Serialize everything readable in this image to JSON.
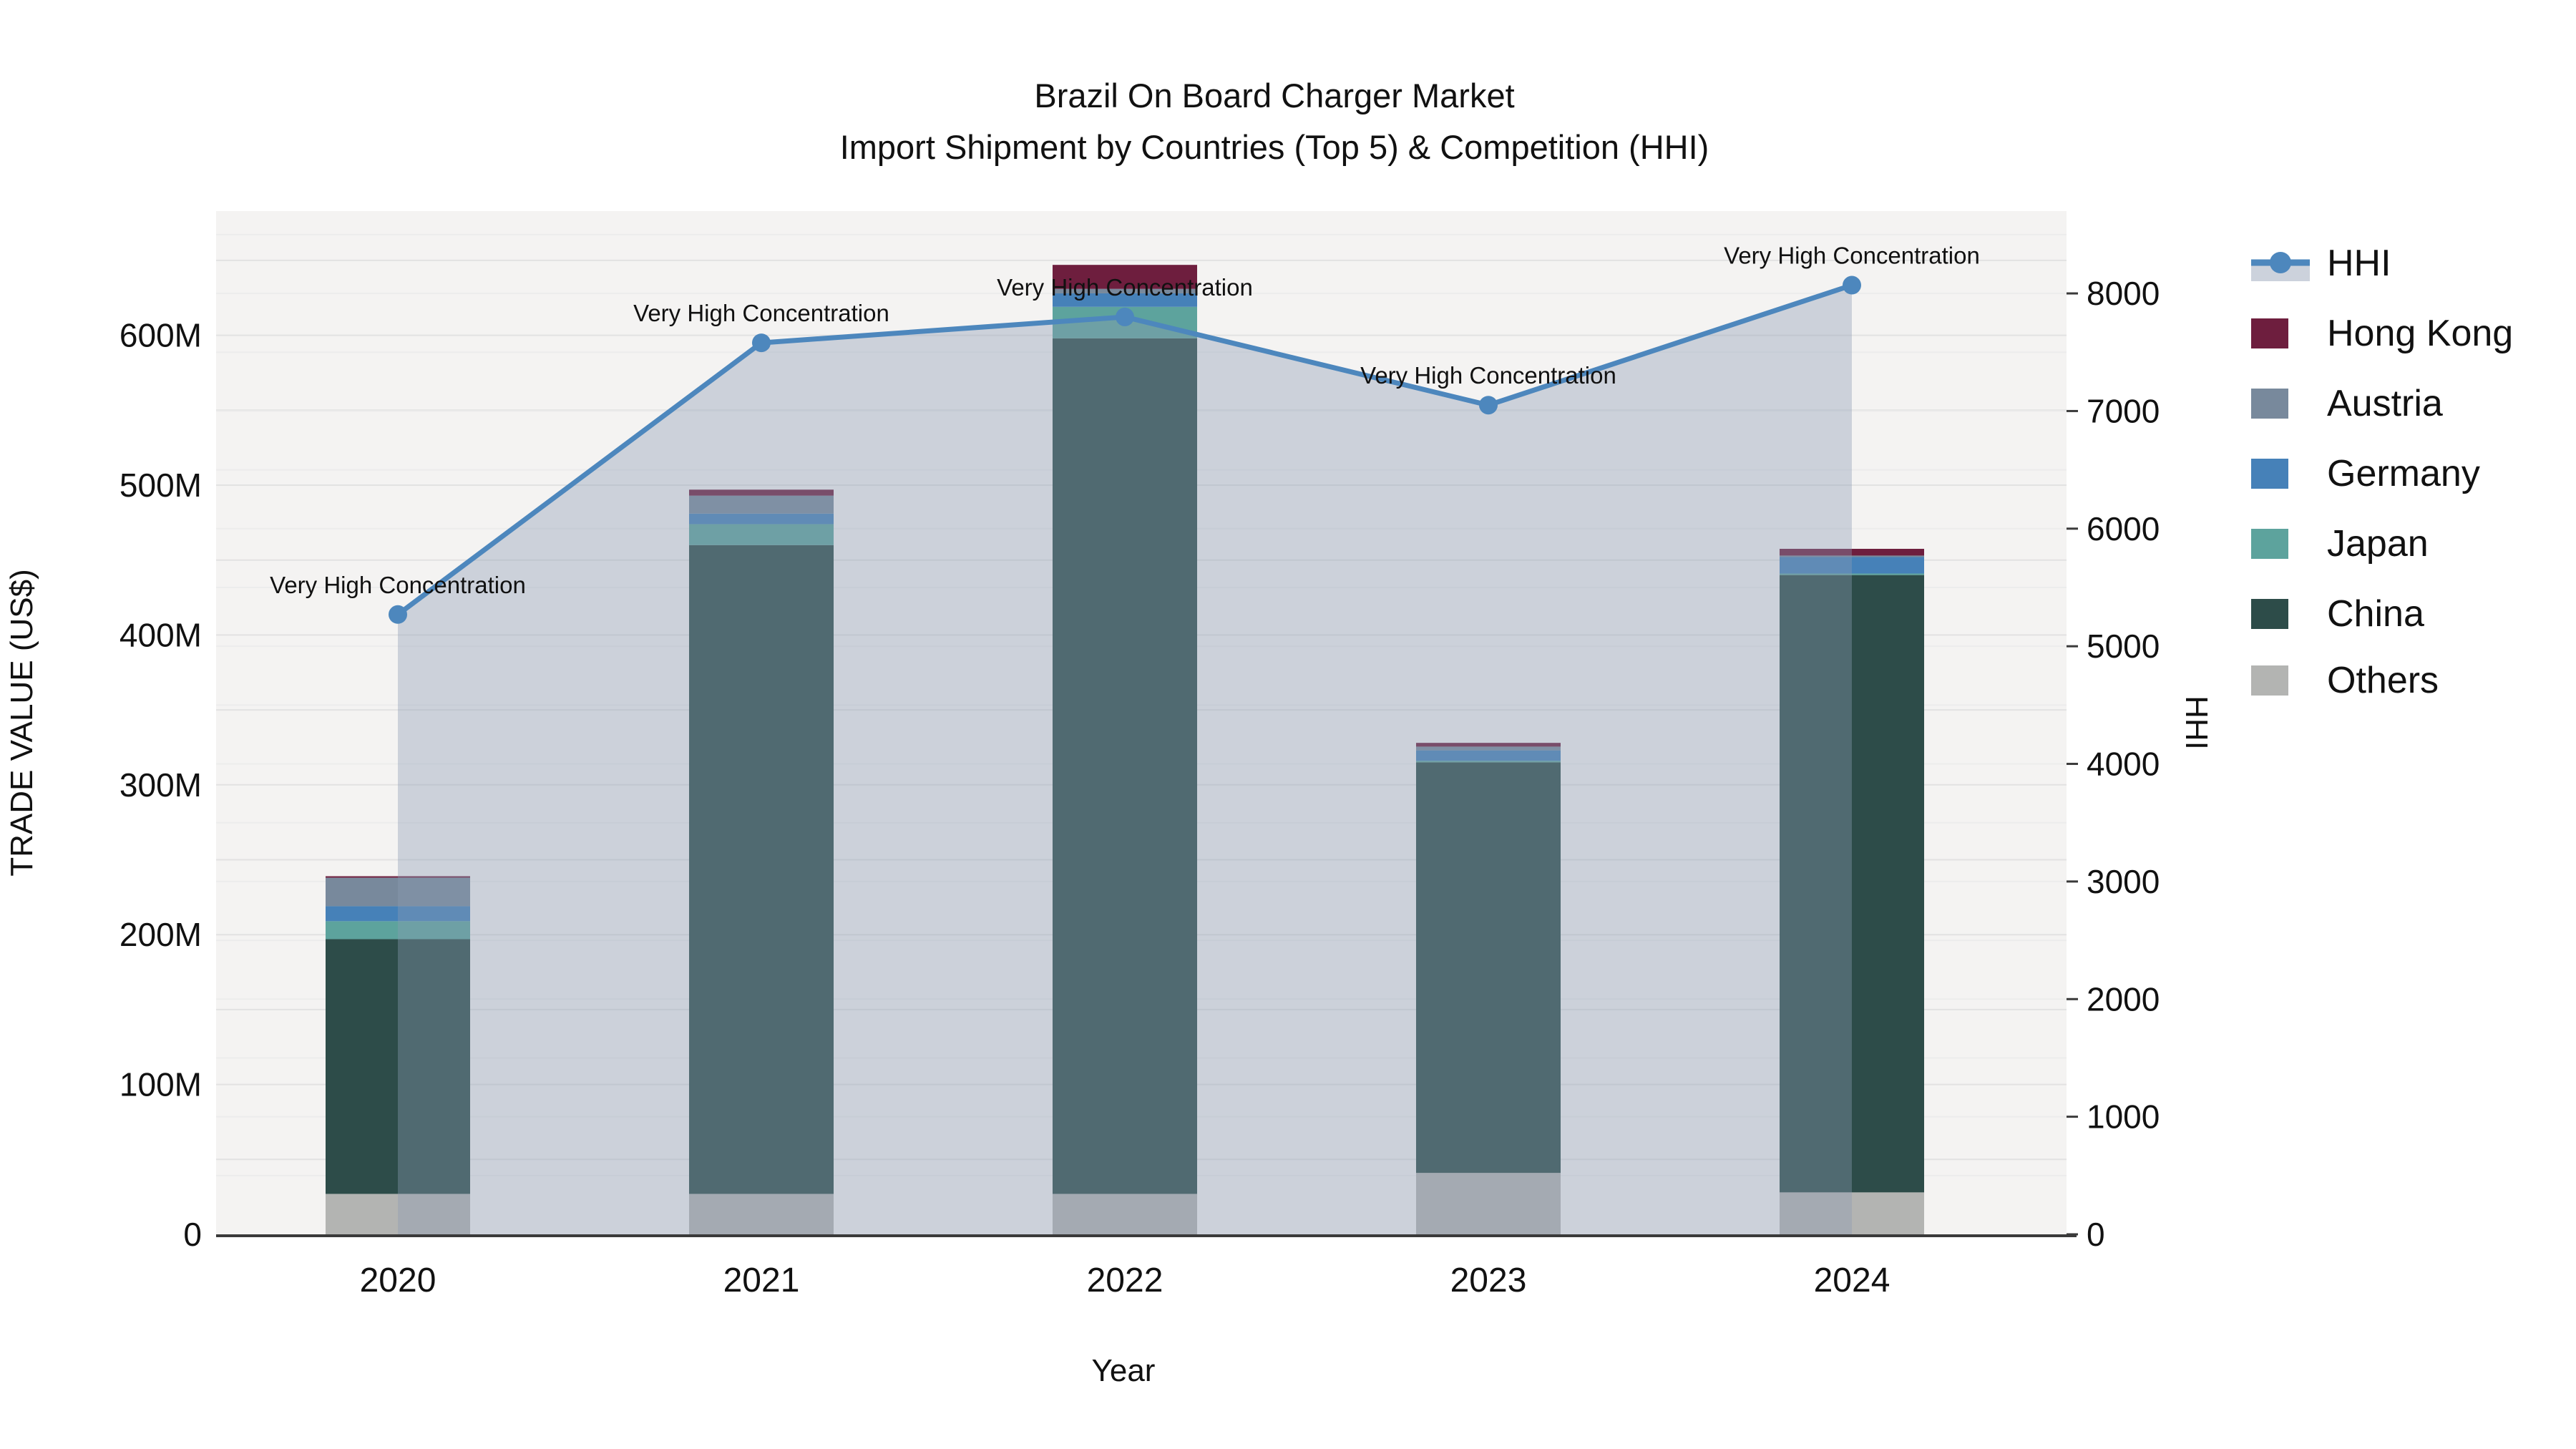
{
  "title_line1": "Brazil On Board Charger Market",
  "title_line2": "Import Shipment by Countries (Top 5) & Competition (HHI)",
  "chart_data": {
    "type": "bar",
    "subtype": "stacked-bar-with-line",
    "title": "Brazil On Board Charger Market Import Shipment by Countries (Top 5) & Competition (HHI)",
    "xlabel": "Year",
    "ylabel_left": "TRADE VALUE (US$)",
    "ylabel_right": "HHI",
    "categories": [
      "2020",
      "2021",
      "2022",
      "2023",
      "2024"
    ],
    "bar_value_unit": "M US$",
    "series": [
      {
        "name": "Others",
        "color": "#b3b4b2",
        "values": [
          27,
          27,
          27,
          41,
          28
        ]
      },
      {
        "name": "China",
        "color": "#2d4c49",
        "values": [
          170,
          433,
          571,
          274,
          412
        ]
      },
      {
        "name": "Japan",
        "color": "#5da39d",
        "values": [
          12,
          14,
          21,
          1,
          1
        ]
      },
      {
        "name": "Germany",
        "color": "#4681b8",
        "values": [
          10,
          7,
          9,
          7,
          11
        ]
      },
      {
        "name": "Austria",
        "color": "#78899c",
        "values": [
          19,
          12,
          3,
          2.5,
          1
        ]
      },
      {
        "name": "Hong Kong",
        "color": "#6e1e3e",
        "values": [
          1,
          4,
          16,
          2.5,
          4.5
        ]
      }
    ],
    "line_series": {
      "name": "HHI",
      "color": "#4d87bd",
      "area_color": "#8c9bb2",
      "area_opacity": 0.38,
      "values": [
        5270,
        7580,
        7800,
        7050,
        8070
      ]
    },
    "annotations": [
      {
        "x": "2020",
        "text": "Very High Concentration"
      },
      {
        "x": "2021",
        "text": "Very High Concentration"
      },
      {
        "x": "2022",
        "text": "Very High Concentration"
      },
      {
        "x": "2023",
        "text": "Very High Concentration"
      },
      {
        "x": "2024",
        "text": "Very High Concentration"
      }
    ],
    "y_left_ticks": [
      "0",
      "100M",
      "200M",
      "300M",
      "400M",
      "500M",
      "600M"
    ],
    "y_left_tick_values_m": [
      0,
      100,
      200,
      300,
      400,
      500,
      600
    ],
    "y_left_max_m": 683,
    "y_right_ticks": [
      "0",
      "1000",
      "2000",
      "3000",
      "4000",
      "5000",
      "6000",
      "7000",
      "8000"
    ],
    "y_right_tick_values": [
      0,
      1000,
      2000,
      3000,
      4000,
      5000,
      6000,
      7000,
      8000
    ],
    "y_right_max": 8700,
    "grid": true,
    "legend_position": "right",
    "legend": [
      {
        "label": "HHI",
        "type": "line",
        "color": "#4d87bd",
        "band_color": "#ccd2dc"
      },
      {
        "label": "Hong Kong",
        "type": "swatch",
        "color": "#6e1e3e"
      },
      {
        "label": "Austria",
        "type": "swatch",
        "color": "#78899c"
      },
      {
        "label": "Germany",
        "type": "swatch",
        "color": "#4681b8"
      },
      {
        "label": "Japan",
        "type": "swatch",
        "color": "#5da39d"
      },
      {
        "label": "China",
        "type": "swatch",
        "color": "#2d4c49"
      },
      {
        "label": "Others",
        "type": "swatch",
        "color": "#b3b4b2"
      }
    ],
    "colors": {
      "plot_background": "#f4f3f2",
      "page_background": "#ffffff",
      "gridline_left": "#e2e2e2",
      "gridline_right": "#ececec",
      "axis_line": "#3a3a3a",
      "text": "#111111"
    }
  }
}
